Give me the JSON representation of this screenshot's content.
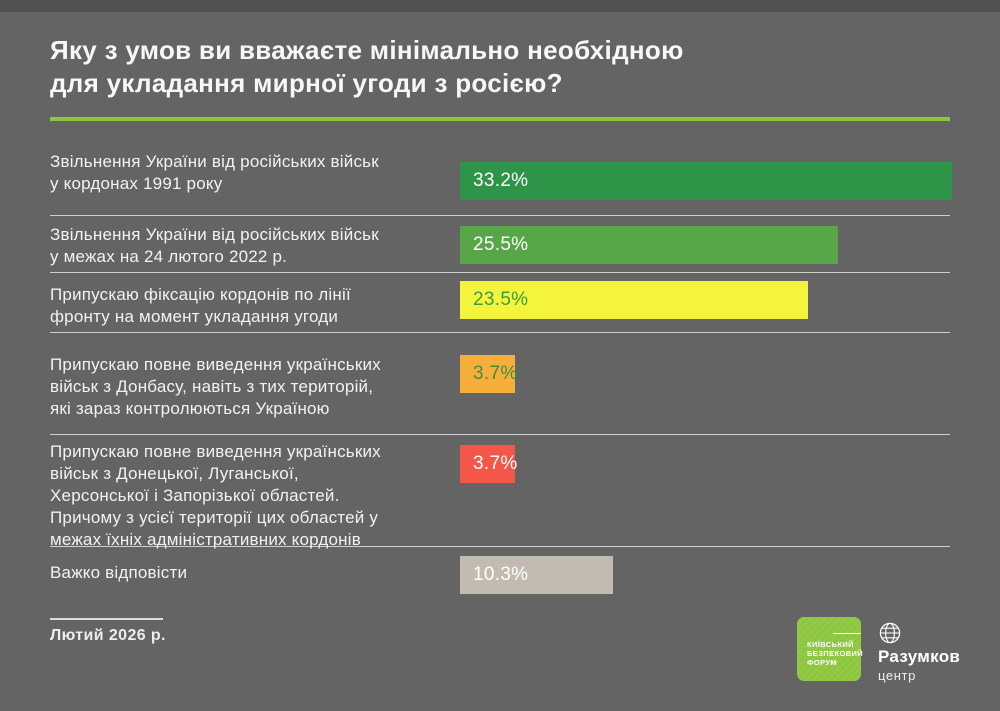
{
  "title": {
    "lines": [
      "Яку з умов ви вважаєте мінімально необхідною",
      "для укладання мирної угоди з росією?"
    ]
  },
  "chart_data": {
    "type": "bar",
    "orientation": "horizontal",
    "title": "Яку з умов ви вважаєте мінімально необхідною для укладання мирної угоди з росією?",
    "categories": [
      "Звільнення України від російських військ у кордонах 1991 року",
      "Звільнення України від російських військ у межах на 24 лютого 2022 р.",
      "Припускаю фіксацію кордонів по лінії фронту на момент укладання угоди",
      "Припускаю повне виведення українських військ з Донбасу, навіть з тих територій, які зараз контролюються Україною",
      "Припускаю повне виведення українських військ з Донецької, Луганської, Херсонської і Запорізької областей. Причому з усієї території цих областей у межах їхніх адміністративних кордонів",
      "Важко відповісти"
    ],
    "values": [
      33.2,
      25.5,
      23.5,
      3.7,
      3.7,
      10.3
    ],
    "unit": "%",
    "bar_colors": [
      "#2E9447",
      "#57A648",
      "#F4F43C",
      "#F7AF3C",
      "#F4564A",
      "#C2BBB2"
    ],
    "value_axis_visible": false,
    "xlim": [
      0,
      33.2
    ],
    "legend": "none",
    "grid": false
  },
  "rows": [
    {
      "label_lines": [
        "Звільнення України від російських військ",
        "у кордонах 1991 року"
      ],
      "value_label": "33.2%",
      "bar_color": "#2E9447",
      "value_color": "#FFFFFF"
    },
    {
      "label_lines": [
        "Звільнення України від російських військ",
        "у межах на 24 лютого 2022 р."
      ],
      "value_label": "25.5%",
      "bar_color": "#57A648",
      "value_color": "#FFFFFF"
    },
    {
      "label_lines": [
        "Припускаю фіксацію кордонів по лінії",
        "фронту на момент укладання угоди"
      ],
      "value_label": "23.5%",
      "bar_color": "#F4F43C",
      "value_color": "#3F9B42"
    },
    {
      "label_lines": [
        "Припускаю повне виведення українських",
        "військ з Донбасу, навіть з тих територій,",
        "які зараз контролюються Україною"
      ],
      "value_label": "3.7%",
      "bar_color": "#F7AF3C",
      "value_color": "#3F8F3D"
    },
    {
      "label_lines": [
        "Припускаю повне виведення українських",
        "військ з Донецької, Луганської,",
        "Херсонської і Запорізької областей.",
        "Причому з усієї території цих областей у",
        "межах їхніх адміністративних кордонів"
      ],
      "value_label": "3.7%",
      "bar_color": "#F4564A",
      "value_color": "#FFFFFF"
    },
    {
      "label_lines": [
        "Важко відповісти"
      ],
      "value_label": "10.3%",
      "bar_color": "#C2BBB2",
      "value_color": "#FFFFFF"
    }
  ],
  "footer": {
    "date": "Лютий 2026 р."
  },
  "logos": {
    "kbf": {
      "lines": [
        "КИЇВСЬКИЙ",
        "БЕЗПЕКОВИЙ",
        "ФОРУМ"
      ],
      "color": "#8DC63F"
    },
    "razumkov": {
      "icon": "globe-icon",
      "name": "Разумков",
      "sub": "центр"
    }
  },
  "colors": {
    "background": "#646464",
    "top_strip": "#515151",
    "accent_green": "#8CC63F",
    "separator": "#EBEBEB",
    "title_text": "#F7F7F7",
    "label_text": "#F2F2F2"
  }
}
